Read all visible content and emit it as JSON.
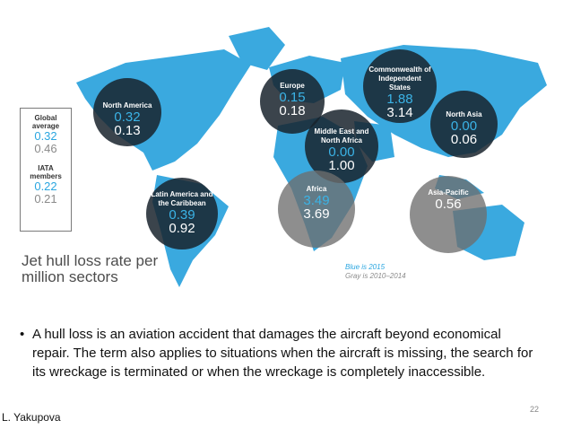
{
  "legend": {
    "global_label": "Global average",
    "global_2015": "0.32",
    "global_2010_2014": "0.46",
    "iata_label": "IATA members",
    "iata_2015": "0.22",
    "iata_2010_2014": "0.21"
  },
  "regions": [
    {
      "name": "North America",
      "v2015": "0.32",
      "v2010_2014": "0.13"
    },
    {
      "name": "Europe",
      "v2015": "0.15",
      "v2010_2014": "0.18"
    },
    {
      "name": "Commonwealth of Independent States",
      "v2015": "1.88",
      "v2010_2014": "3.14"
    },
    {
      "name": "North Asia",
      "v2015": "0.00",
      "v2010_2014": "0.06"
    },
    {
      "name": "Middle East and North Africa",
      "v2015": "0.00",
      "v2010_2014": "1.00"
    },
    {
      "name": "Africa",
      "v2015": "3.49",
      "v2010_2014": "3.69"
    },
    {
      "name": "Latin America and the Caribbean",
      "v2015": "0.39",
      "v2010_2014": "0.92"
    },
    {
      "name": "Asia-Pacific",
      "v2015": "",
      "v2010_2014": "0.56"
    }
  ],
  "caption": "Jet hull loss rate per million sectors",
  "color_note": {
    "blue": "Blue is 2015",
    "gray": "Gray is 2010–2014"
  },
  "colors": {
    "map": "#3aa9df",
    "blue_value": "#3bb3e6",
    "dark_circle": "#19232d",
    "gray_circle": "#6e6e6e"
  },
  "bullet": "A hull loss is an aviation accident that damages the aircraft beyond economical repair. The term also applies to situations when the aircraft is missing, the search for its wreckage is terminated or when the wreckage is completely inaccessible.",
  "author": "L. Yakupova",
  "slide_number": "22"
}
